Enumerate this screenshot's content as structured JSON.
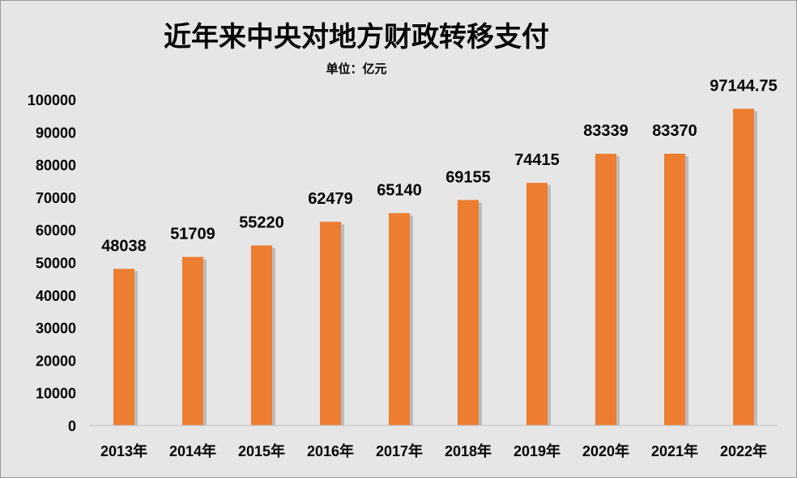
{
  "chart_data": {
    "type": "bar",
    "title": "近年来中央对地方财政转移支付",
    "subtitle": "单位：亿元",
    "categories": [
      "2013年",
      "2014年",
      "2015年",
      "2016年",
      "2017年",
      "2018年",
      "2019年",
      "2020年",
      "2021年",
      "2022年"
    ],
    "values": [
      48038,
      51709,
      55220,
      62479,
      65140,
      69155,
      74415,
      83339,
      83370,
      97144.75
    ],
    "data_labels": [
      "48038",
      "51709",
      "55220",
      "62479",
      "65140",
      "69155",
      "74415",
      "83339",
      "83370",
      "97144.75"
    ],
    "xlabel": "",
    "ylabel": "",
    "ylim": [
      0,
      100000
    ],
    "yticks": [
      "0",
      "10000",
      "20000",
      "30000",
      "40000",
      "50000",
      "60000",
      "70000",
      "80000",
      "90000",
      "100000"
    ],
    "grid": false,
    "legend": "none",
    "colors": {
      "bar": "#ed7d31",
      "background": "#e6e6e6"
    }
  }
}
